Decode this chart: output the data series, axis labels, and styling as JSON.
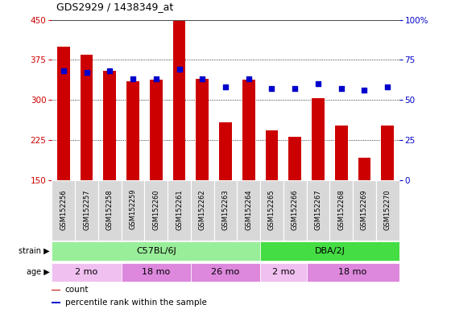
{
  "title": "GDS2929 / 1438349_at",
  "samples": [
    "GSM152256",
    "GSM152257",
    "GSM152258",
    "GSM152259",
    "GSM152260",
    "GSM152261",
    "GSM152262",
    "GSM152263",
    "GSM152264",
    "GSM152265",
    "GSM152266",
    "GSM152267",
    "GSM152268",
    "GSM152269",
    "GSM152270"
  ],
  "counts": [
    400,
    385,
    355,
    335,
    338,
    448,
    340,
    258,
    338,
    243,
    232,
    303,
    252,
    193,
    253
  ],
  "percentile_ranks": [
    68,
    67,
    68,
    63,
    63,
    69,
    63,
    58,
    63,
    57,
    57,
    60,
    57,
    56,
    58
  ],
  "ylim_left": [
    150,
    450
  ],
  "ylim_right": [
    0,
    100
  ],
  "yticks_left": [
    150,
    225,
    300,
    375,
    450
  ],
  "yticks_right": [
    0,
    25,
    50,
    75,
    100
  ],
  "bar_color": "#cc0000",
  "dot_color": "#0000cc",
  "strain_groups": [
    {
      "label": "C57BL/6J",
      "start": 0,
      "end": 9,
      "color": "#99ee99"
    },
    {
      "label": "DBA/2J",
      "start": 9,
      "end": 15,
      "color": "#44dd44"
    }
  ],
  "age_groups": [
    {
      "label": "2 mo",
      "start": 0,
      "end": 3,
      "color": "#f0c0f0"
    },
    {
      "label": "18 mo",
      "start": 3,
      "end": 6,
      "color": "#dd88dd"
    },
    {
      "label": "26 mo",
      "start": 6,
      "end": 9,
      "color": "#dd88dd"
    },
    {
      "label": "2 mo",
      "start": 9,
      "end": 11,
      "color": "#f0c0f0"
    },
    {
      "label": "18 mo",
      "start": 11,
      "end": 15,
      "color": "#dd88dd"
    }
  ],
  "legend_items": [
    {
      "color": "#cc0000",
      "label": "count"
    },
    {
      "color": "#0000cc",
      "label": "percentile rank within the sample"
    }
  ]
}
